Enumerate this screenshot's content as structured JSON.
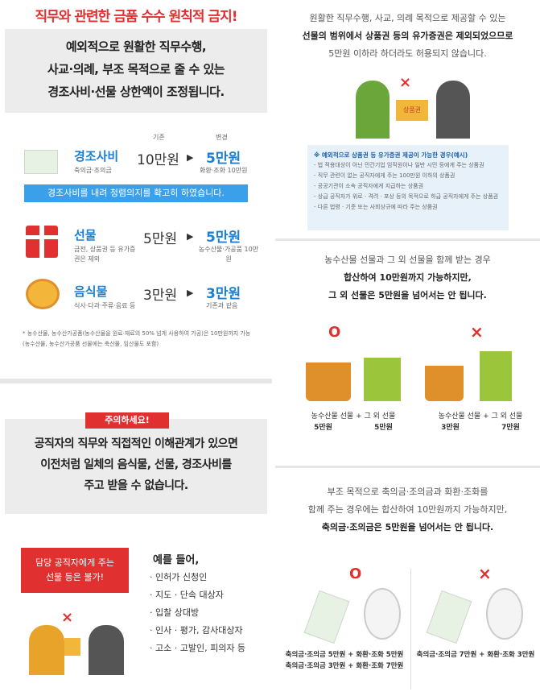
{
  "left": {
    "title": "직무와 관련한 금품 수수 원칙적 금지!",
    "intro": [
      "예외적으로 원활한 직무수행,",
      "사교·의례, 부조 목적으로 줄 수 있는",
      "경조사비·선물 상한액이 조정됩니다."
    ],
    "col_before": "기존",
    "col_after": "변경",
    "rows": [
      {
        "label": "경조사비",
        "sub": "축의금·조의금",
        "before": "10만원",
        "after": "5만원",
        "after_sub": "화환·조화 10만원"
      },
      {
        "label": "선물",
        "sub": "금전, 상품권 등 유가증권은 제외",
        "before": "5만원",
        "after": "5만원",
        "after_sub": "농수산물·가공품 10만원"
      },
      {
        "label": "음식물",
        "sub": "식사·다과·주류·음료 등",
        "before": "3만원",
        "after": "3만원",
        "after_sub": "기존과 같음"
      }
    ],
    "bar": "경조사비를 내려 청렴의지를 확고히 하였습니다.",
    "footnote": [
      "* 농수산물, 농수산가공품(농수산물을 원료·재료의 50% 넘게 사용하여 가공)은 10만원까지 가능",
      "(농수산물, 농수산가공품 선물에는 축산물, 임산물도 포함)"
    ],
    "caution_tag": "주의하세요!",
    "caution": [
      "공직자의 직무와 직접적인 이해관계가 있으면",
      "이전처럼 일체의 음식물, 선물, 경조사비를",
      "주고 받을 수 없습니다."
    ],
    "redbox": [
      "담당 공직자에게 주는",
      "선물 등은 불가!"
    ],
    "example_title": "예를 들어,",
    "examples": [
      "· 인허가 신청인",
      "· 지도 · 단속 대상자",
      "· 입찰 상대방",
      "· 인사 · 평가, 감사대상자",
      "· 고소 · 고발인, 피의자 등"
    ],
    "x_mark": "×"
  },
  "right": {
    "p1": [
      "원활한 직무수행, 사교, 의례 목적으로 제공할 수 있는",
      "선물의 범위에서 상품권 등의 유가증권은 제외되었으므로",
      "5만원 이하라 하더라도 허용되지 않습니다."
    ],
    "x_mark": "×",
    "envelope": "상품권",
    "exc_title": "※ 예외적으로 상품권 등 유가증권 제공이 가능한 경우(예시)",
    "exc_items": [
      "- 법 적용대상이 아닌 민간기업 임직원이나 일반 시민 등에게 주는 상품권",
      "- 직무 관련이 없는 공직자에게 주는 100만원 이하의 상품권",
      "- 공공기관이 소속 공직자에게 지급하는 상품권",
      "- 상급 공직자가 위로 · 격려 · 포상 등의 목적으로 하급 공직자에게 주는 상품권",
      "- 다른 법령 · 기준 또는 사회상규에 따라 주는 상품권"
    ],
    "p2": [
      "농수산물 선물과 그 외 선물을 함께 받는 경우",
      "합산하여 10만원까지 가능하지만,",
      "그 외 선물은 5만원을 넘어서는 안 됩니다."
    ],
    "ok": "O",
    "ng": "×",
    "ex1": {
      "label": "농수산물 선물 + 그 외 선물",
      "a": "5만원",
      "b": "5만원"
    },
    "ex2": {
      "label": "농수산물 선물 + 그 외 선물",
      "a": "3만원",
      "b": "7만원"
    },
    "p3": [
      "부조 목적으로 축의금·조의금과 화환·조화를",
      "함께 주는 경우에는 합산하여 10만원까지 가능하지만,",
      "축의금·조의금은 5만원을 넘어서는 안 됩니다."
    ],
    "ex3": [
      "축의금·조의금 5만원 + 화환·조화 5만원",
      "축의금·조의금 3만원 + 화환·조화 7만원"
    ],
    "ex4": "축의금·조의금 7만원 + 화환·조화 3만원"
  },
  "colors": {
    "red": "#e03030",
    "blue": "#1b7fd6",
    "bar": "#3aa0ea"
  }
}
